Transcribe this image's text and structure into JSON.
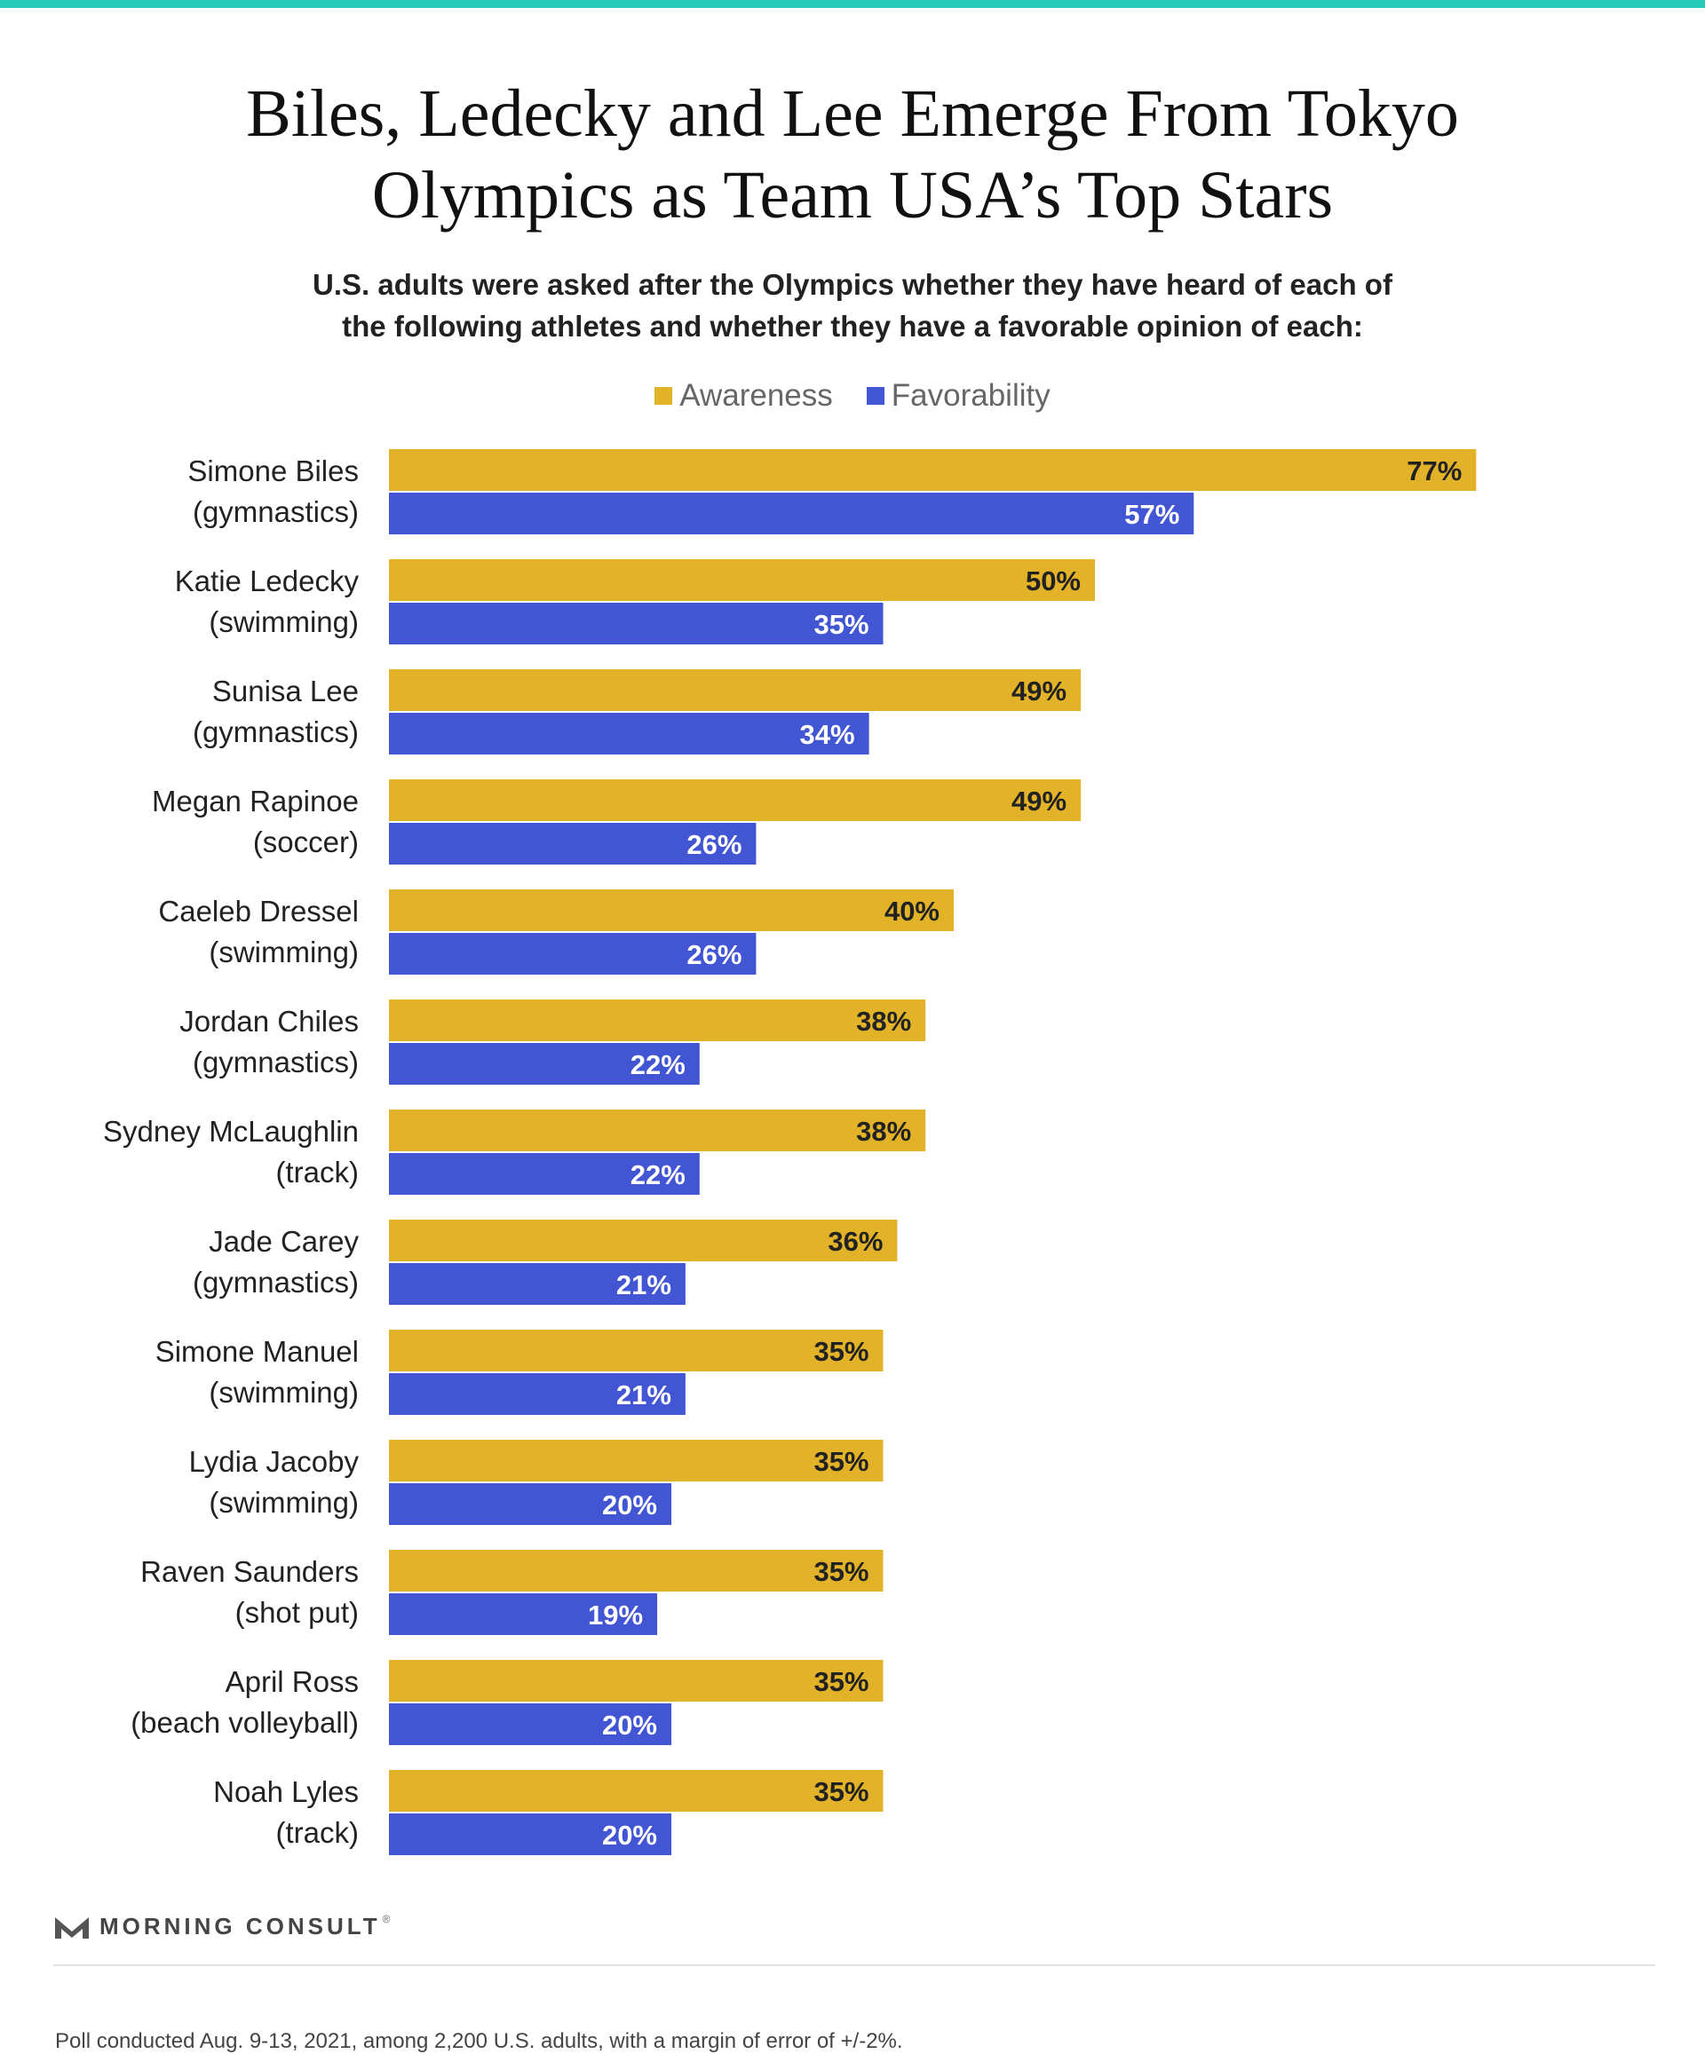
{
  "title_line1": "Biles, Ledecky and Lee Emerge From Tokyo",
  "title_line2": "Olympics as Team USA’s Top Stars",
  "subtitle_line1": "U.S. adults were asked after the Olympics whether they have heard of each of",
  "subtitle_line2": "the following athletes and whether they have a favorable opinion of each:",
  "colors": {
    "accent_top": "#26c9b7",
    "awareness": "#e2b229",
    "favorability": "#4256d4"
  },
  "chart_data": {
    "type": "bar",
    "orientation": "horizontal",
    "categories": [
      [
        "Simone Biles",
        "(gymnastics)"
      ],
      [
        "Katie Ledecky",
        "(swimming)"
      ],
      [
        "Sunisa Lee",
        "(gymnastics)"
      ],
      [
        "Megan Rapinoe",
        "(soccer)"
      ],
      [
        "Caeleb Dressel",
        "(swimming)"
      ],
      [
        "Jordan Chiles",
        "(gymnastics)"
      ],
      [
        "Sydney McLaughlin",
        "(track)"
      ],
      [
        "Jade Carey",
        "(gymnastics)"
      ],
      [
        "Simone Manuel",
        "(swimming)"
      ],
      [
        "Lydia Jacoby",
        "(swimming)"
      ],
      [
        "Raven Saunders",
        "(shot put)"
      ],
      [
        "April Ross",
        "(beach volleyball)"
      ],
      [
        "Noah Lyles",
        "(track)"
      ]
    ],
    "series": [
      {
        "name": "Awareness",
        "color": "#e2b229",
        "label_color": "#222222",
        "values": [
          77,
          50,
          49,
          49,
          40,
          38,
          38,
          36,
          35,
          35,
          35,
          35,
          35
        ]
      },
      {
        "name": "Favorability",
        "color": "#4256d4",
        "label_color": "#ffffff",
        "values": [
          57,
          35,
          34,
          26,
          26,
          22,
          22,
          21,
          21,
          20,
          19,
          20,
          20
        ]
      }
    ],
    "value_suffix": "%",
    "legend_position": "top-center",
    "grid": false
  },
  "brand": {
    "name": "MORNING CONSULT",
    "mark": "®"
  },
  "source": "Poll conducted Aug. 9-13, 2021, among 2,200 U.S. adults, with a margin of error of +/-2%."
}
